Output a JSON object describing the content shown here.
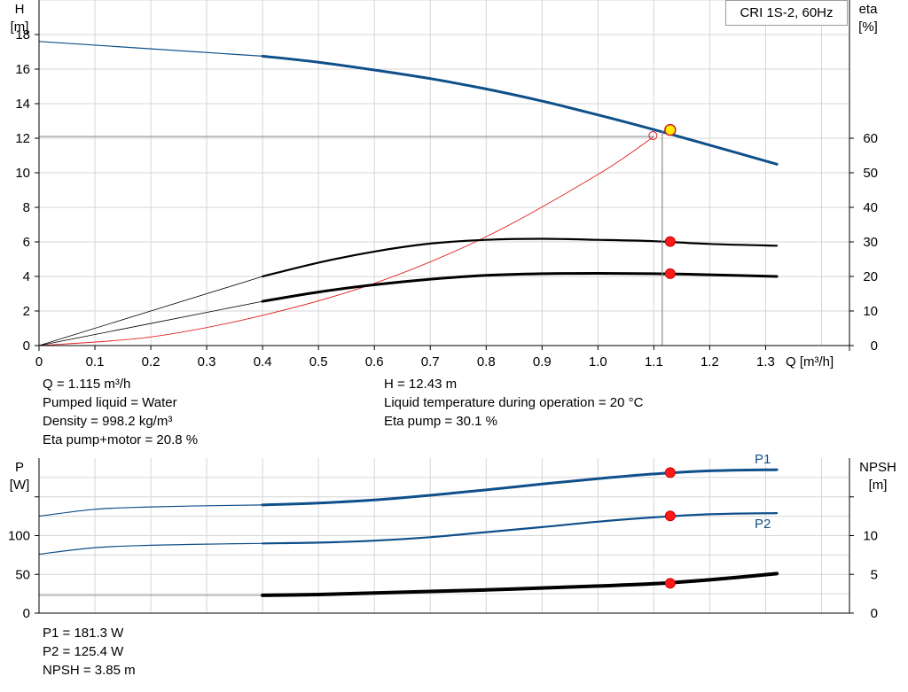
{
  "top_chart": {
    "legend": "CRI 1S-2, 60Hz",
    "left_axis": {
      "name": "H",
      "unit": "[m]",
      "ticks": [
        0,
        2,
        4,
        6,
        8,
        10,
        12,
        14,
        16,
        18
      ]
    },
    "right_axis": {
      "name": "eta",
      "unit": "[%]",
      "ticks": [
        0,
        10,
        20,
        30,
        40,
        50,
        60
      ]
    },
    "x_axis": {
      "label": "Q [m³/h]",
      "ticks": [
        "0",
        "0.1",
        "0.2",
        "0.3",
        "0.4",
        "0.5",
        "0.6",
        "0.7",
        "0.8",
        "0.9",
        "1.0",
        "1.1",
        "1.2",
        "1.3"
      ]
    }
  },
  "info_top_left": [
    "Q = 1.115 m³/h",
    "Pumped liquid = Water",
    "Density = 998.2 kg/m³",
    "Eta pump+motor = 20.8 %"
  ],
  "info_top_right": [
    "H = 12.43 m",
    "Liquid temperature during operation = 20 °C",
    "Eta pump = 30.1 %"
  ],
  "bottom_chart": {
    "left_axis": {
      "name": "P",
      "unit": "[W]",
      "ticks": [
        "0",
        "50",
        "100"
      ]
    },
    "right_axis": {
      "name": "NPSH",
      "unit": "[m]",
      "ticks": [
        "0",
        "5",
        "10"
      ]
    },
    "series_labels": {
      "p1": "P1",
      "p2": "P2"
    }
  },
  "info_bottom": [
    "P1 = 181.3 W",
    "P2 = 125.4 W",
    "NPSH = 3.85 m"
  ],
  "chart_data": [
    {
      "type": "line",
      "title": "CRI 1S-2, 60Hz",
      "xlabel": "Q [m³/h]",
      "ylabel": "H [m]",
      "y2label": "eta [%]",
      "xlim": [
        0,
        1.45
      ],
      "ylim": [
        0,
        20
      ],
      "y2lim": [
        0,
        100
      ],
      "grid": true,
      "legend_position": "top-right",
      "series": [
        {
          "name": "H",
          "axis": "left",
          "color": "#0f4f8a",
          "x": [
            0,
            0.4,
            0.5,
            0.6,
            0.7,
            0.8,
            0.9,
            1.0,
            1.1,
            1.2,
            1.32
          ],
          "y": [
            17.6,
            16.75,
            16.4,
            15.95,
            15.45,
            14.85,
            14.15,
            13.35,
            12.5,
            11.6,
            10.5
          ]
        },
        {
          "name": "eta pump",
          "axis": "right",
          "color": "#000000",
          "x": [
            0,
            0.4,
            0.5,
            0.6,
            0.7,
            0.8,
            0.9,
            1.0,
            1.1,
            1.2,
            1.32
          ],
          "y": [
            0,
            20.0,
            24.0,
            27.2,
            29.5,
            30.6,
            30.9,
            30.6,
            30.2,
            29.4,
            28.9
          ]
        },
        {
          "name": "eta pump+motor",
          "axis": "right",
          "color": "#000000",
          "x": [
            0,
            0.4,
            0.5,
            0.6,
            0.7,
            0.8,
            0.9,
            1.0,
            1.1,
            1.2,
            1.32
          ],
          "y": [
            0,
            12.8,
            15.5,
            17.6,
            19.2,
            20.3,
            20.8,
            20.9,
            20.8,
            20.5,
            20.0
          ]
        },
        {
          "name": "system curve",
          "axis": "left",
          "color": "#e02020",
          "x": [
            0,
            0.2,
            0.4,
            0.6,
            0.8,
            1.0,
            1.1
          ],
          "y": [
            0,
            0.5,
            1.75,
            3.6,
            6.3,
            9.9,
            12.1
          ]
        }
      ],
      "operating_point": {
        "x": 1.115,
        "H": 12.43,
        "eta_pump": 30.1,
        "eta_pump_motor": 20.8
      }
    },
    {
      "type": "line",
      "xlabel": "Q [m³/h]",
      "ylabel": "P [W]",
      "y2label": "NPSH [m]",
      "xlim": [
        0,
        1.45
      ],
      "ylim": [
        0,
        200
      ],
      "y2lim": [
        0,
        20
      ],
      "grid": true,
      "series": [
        {
          "name": "P1",
          "axis": "left",
          "color": "#0f4f8a",
          "x": [
            0,
            0.1,
            0.2,
            0.3,
            0.4,
            0.5,
            0.6,
            0.7,
            0.8,
            0.9,
            1.0,
            1.1,
            1.2,
            1.32
          ],
          "y": [
            125,
            134,
            137,
            138.5,
            139.5,
            142,
            146,
            152,
            159,
            166.5,
            173.5,
            179.5,
            183.5,
            185
          ]
        },
        {
          "name": "P2",
          "axis": "left",
          "color": "#0f4f8a",
          "x": [
            0,
            0.1,
            0.2,
            0.3,
            0.4,
            0.5,
            0.6,
            0.7,
            0.8,
            0.9,
            1.0,
            1.1,
            1.2,
            1.32
          ],
          "y": [
            76,
            84.5,
            87.5,
            89,
            90,
            91,
            93.5,
            98,
            104.5,
            111,
            118,
            123.5,
            127.5,
            129
          ]
        },
        {
          "name": "NPSH",
          "axis": "right",
          "color": "#000000",
          "x": [
            0,
            0.4,
            0.5,
            0.6,
            0.7,
            0.8,
            0.9,
            1.0,
            1.1,
            1.2,
            1.32
          ],
          "y": [
            2.3,
            2.3,
            2.4,
            2.6,
            2.8,
            3.0,
            3.25,
            3.5,
            3.8,
            4.3,
            5.1
          ]
        }
      ],
      "operating_point": {
        "x": 1.115,
        "P1": 181.3,
        "P2": 125.4,
        "NPSH": 3.85
      }
    }
  ]
}
